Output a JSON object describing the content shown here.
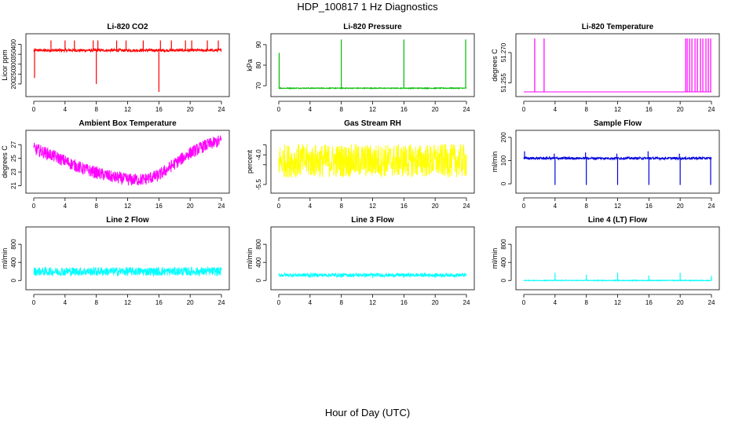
{
  "title": "HDP_100817  1 Hz Diagnostics",
  "xlabel": "Hour of Day (UTC)",
  "chart_data": [
    {
      "type": "line",
      "title": "Li-820 CO2",
      "ylabel": "Licor ppm",
      "color": "#ff0000",
      "x_ticks": [
        0,
        4,
        8,
        12,
        16,
        20,
        24
      ],
      "xlim": [
        0,
        24
      ],
      "y_ticks": [
        200,
        250,
        300,
        350,
        400
      ],
      "ylim": [
        160,
        430
      ],
      "baseline": 370,
      "noise": 7,
      "wave": 0,
      "spikes": [
        {
          "x": 0.1,
          "y": 230
        },
        {
          "x": 2.2,
          "y": 420
        },
        {
          "x": 4.0,
          "y": 420
        },
        {
          "x": 5.2,
          "y": 420
        },
        {
          "x": 7.6,
          "y": 420
        },
        {
          "x": 8.0,
          "y": 200
        },
        {
          "x": 8.2,
          "y": 420
        },
        {
          "x": 10.6,
          "y": 420
        },
        {
          "x": 11.8,
          "y": 420
        },
        {
          "x": 14.0,
          "y": 420
        },
        {
          "x": 16.0,
          "y": 160
        },
        {
          "x": 16.2,
          "y": 420
        },
        {
          "x": 17.6,
          "y": 420
        },
        {
          "x": 19.4,
          "y": 420
        },
        {
          "x": 20.2,
          "y": 420
        },
        {
          "x": 22.2,
          "y": 420
        },
        {
          "x": 23.6,
          "y": 420
        }
      ]
    },
    {
      "type": "line",
      "title": "Li-820 Pressure",
      "ylabel": "kPa",
      "color": "#00bb00",
      "x_ticks": [
        0,
        4,
        8,
        12,
        16,
        20,
        24
      ],
      "xlim": [
        0,
        24
      ],
      "y_ticks": [
        70,
        80,
        90
      ],
      "ylim": [
        67,
        93
      ],
      "baseline": 68.8,
      "noise": 0.2,
      "wave": 0,
      "spikes": [
        {
          "x": 0.05,
          "y": 86
        },
        {
          "x": 8.0,
          "y": 92.5
        },
        {
          "x": 16.0,
          "y": 92.5
        },
        {
          "x": 23.9,
          "y": 92.5
        }
      ]
    },
    {
      "type": "line",
      "title": "Li-820 Temperature",
      "ylabel": "degrees C",
      "color": "#ff00ff",
      "x_ticks": [
        0,
        4,
        8,
        12,
        16,
        20,
        24
      ],
      "xlim": [
        0,
        24
      ],
      "y_tick_labels": [
        "51.255",
        "51.270"
      ],
      "y_ticks": [
        51.255,
        51.27
      ],
      "ylim": [
        51.2505,
        51.277
      ],
      "baseline": 51.2505,
      "noise": 0,
      "wave": 0,
      "spikes": [
        {
          "x": 1.4,
          "y": 51.277
        },
        {
          "x": 2.6,
          "y": 51.277
        },
        {
          "x": 20.7,
          "y": 51.277
        },
        {
          "x": 20.9,
          "y": 51.277
        },
        {
          "x": 21.2,
          "y": 51.277
        },
        {
          "x": 21.5,
          "y": 51.277
        },
        {
          "x": 21.9,
          "y": 51.277
        },
        {
          "x": 22.2,
          "y": 51.277
        },
        {
          "x": 22.6,
          "y": 51.277
        },
        {
          "x": 22.9,
          "y": 51.277
        },
        {
          "x": 23.3,
          "y": 51.277
        },
        {
          "x": 23.6,
          "y": 51.277
        },
        {
          "x": 23.9,
          "y": 51.277
        }
      ]
    },
    {
      "type": "line",
      "title": "Ambient Box Temperature",
      "ylabel": "degrees C",
      "color": "#ff00ff",
      "x_ticks": [
        0,
        4,
        8,
        12,
        16,
        20,
        24
      ],
      "xlim": [
        0,
        24
      ],
      "y_ticks": [
        21,
        23,
        25,
        27
      ],
      "ylim": [
        20.6,
        28.4
      ],
      "curve": [
        [
          0,
          26.4
        ],
        [
          2,
          25.6
        ],
        [
          4,
          24.6
        ],
        [
          6,
          23.6
        ],
        [
          8,
          22.9
        ],
        [
          10,
          22.3
        ],
        [
          12,
          21.9
        ],
        [
          14,
          21.9
        ],
        [
          16,
          22.5
        ],
        [
          18,
          24.2
        ],
        [
          20,
          25.8
        ],
        [
          22,
          26.9
        ],
        [
          24,
          27.6
        ]
      ],
      "noise": 0.9,
      "spikes": []
    },
    {
      "type": "line",
      "title": "Gas Stream RH",
      "ylabel": "percent",
      "color": "#ffff00",
      "x_ticks": [
        0,
        4,
        8,
        12,
        16,
        20,
        24
      ],
      "xlim": [
        0,
        24
      ],
      "y_ticks": [
        -5.5,
        -4.5,
        -4.0,
        -3.5
      ],
      "y_tick_labels": [
        "-5.5",
        "",
        "-4.0",
        ""
      ],
      "ylim": [
        -5.7,
        -3.0
      ],
      "baseline": -4.3,
      "noise": 0.85,
      "wave": 0,
      "spikes": []
    },
    {
      "type": "line",
      "title": "Sample Flow",
      "ylabel": "ml/min",
      "color": "#0000dd",
      "x_ticks": [
        0,
        4,
        8,
        12,
        16,
        20,
        24
      ],
      "xlim": [
        0,
        24
      ],
      "y_ticks": [
        0,
        100,
        200
      ],
      "ylim": [
        -20,
        210
      ],
      "baseline": 110,
      "noise": 5,
      "wave": 0,
      "spikes": [
        {
          "x": 0.1,
          "y": 140
        },
        {
          "x": 4.0,
          "y": -5
        },
        {
          "x": 3.9,
          "y": 130
        },
        {
          "x": 8.0,
          "y": -5
        },
        {
          "x": 7.9,
          "y": 135
        },
        {
          "x": 12.0,
          "y": -5
        },
        {
          "x": 11.9,
          "y": 130
        },
        {
          "x": 16.0,
          "y": -5
        },
        {
          "x": 15.9,
          "y": 140
        },
        {
          "x": 20.0,
          "y": -5
        },
        {
          "x": 19.9,
          "y": 130
        },
        {
          "x": 23.9,
          "y": -5
        }
      ]
    },
    {
      "type": "line",
      "title": "Line 2 Flow",
      "ylabel": "ml/min",
      "color": "#00ffff",
      "x_ticks": [
        0,
        4,
        8,
        12,
        16,
        20,
        24
      ],
      "xlim": [
        0,
        24
      ],
      "y_ticks": [
        0,
        200,
        400,
        600,
        800,
        1000
      ],
      "y_tick_labels": [
        "0",
        "400",
        "800"
      ],
      "y_ticks_shown": [
        0,
        400,
        800
      ],
      "ylim": [
        -100,
        1080
      ],
      "baseline": 200,
      "noise": 95,
      "wave": 0,
      "spikes": [
        {
          "x": 4.0,
          "y": 110
        },
        {
          "x": 8.0,
          "y": 110
        },
        {
          "x": 12.0,
          "y": 110
        },
        {
          "x": 16.0,
          "y": 110
        },
        {
          "x": 20.0,
          "y": 110
        }
      ]
    },
    {
      "type": "line",
      "title": "Line 3 Flow",
      "ylabel": "ml/min",
      "color": "#00ffff",
      "x_ticks": [
        0,
        4,
        8,
        12,
        16,
        20,
        24
      ],
      "xlim": [
        0,
        24
      ],
      "y_ticks_shown": [
        0,
        400,
        800
      ],
      "y_tick_labels": [
        "0",
        "400",
        "800"
      ],
      "ylim": [
        -100,
        1080
      ],
      "baseline": 120,
      "noise": 40,
      "wave": 0,
      "spikes": [
        {
          "x": 4.0,
          "y": 60
        },
        {
          "x": 8.0,
          "y": 60
        },
        {
          "x": 12.0,
          "y": 60
        },
        {
          "x": 16.0,
          "y": 60
        },
        {
          "x": 20.0,
          "y": 60
        }
      ]
    },
    {
      "type": "line",
      "title": "Line 4 (LT) Flow",
      "ylabel": "ml/min",
      "color": "#00ffff",
      "x_ticks": [
        0,
        4,
        8,
        12,
        16,
        20,
        24
      ],
      "xlim": [
        0,
        24
      ],
      "y_ticks_shown": [
        0,
        400,
        800
      ],
      "y_tick_labels": [
        "0",
        "400",
        "800"
      ],
      "ylim": [
        -100,
        1080
      ],
      "baseline": 0,
      "noise": 8,
      "wave": 0,
      "spikes": [
        {
          "x": 4.0,
          "y": 170
        },
        {
          "x": 8.0,
          "y": 130
        },
        {
          "x": 12.0,
          "y": 170
        },
        {
          "x": 16.0,
          "y": 110
        },
        {
          "x": 20.0,
          "y": 170
        },
        {
          "x": 24.0,
          "y": 100
        }
      ]
    }
  ]
}
